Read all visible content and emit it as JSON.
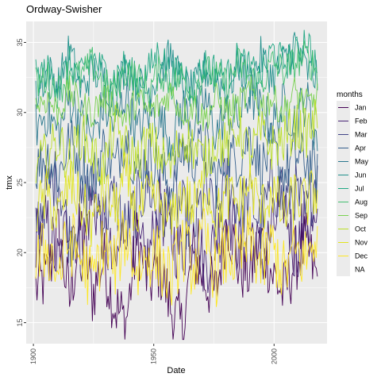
{
  "chart_data": {
    "type": "line",
    "title": "Ordway-Swisher",
    "xlabel": "Date",
    "ylabel": "tmx",
    "xlim": [
      1897,
      2022
    ],
    "ylim": [
      13.5,
      36.5
    ],
    "x_ticks": [
      1900,
      1950,
      2000
    ],
    "y_ticks": [
      15,
      20,
      25,
      30,
      35
    ],
    "x_tick_labels": [
      "1900",
      "1950",
      "2000"
    ],
    "y_tick_labels": [
      "15",
      "20",
      "25",
      "30",
      "35"
    ],
    "x_start": 1901,
    "x_end": 2018,
    "grid": true,
    "legend": {
      "title": "months",
      "position": "right",
      "entries": [
        "Jan",
        "Feb",
        "Mar",
        "Apr",
        "May",
        "Jun",
        "Jul",
        "Aug",
        "Sep",
        "Oct",
        "Nov",
        "Dec",
        "NA"
      ]
    },
    "series": [
      {
        "name": "Jan",
        "color": "#440154",
        "mean": 19.5,
        "amp": 2.5,
        "values": [
          17.5,
          18.2,
          21.5,
          16.5,
          22.0,
          17.0,
          19.5,
          16.2,
          15.0,
          21.0,
          17.8,
          19.0,
          16.0,
          14.5,
          20.0,
          18.0,
          17.0,
          22.5,
          19.0,
          18.5,
          21.0,
          18.5,
          17.0,
          19.5,
          20.5,
          18.0
        ]
      },
      {
        "name": "Feb",
        "color": "#482576",
        "mean": 20.8,
        "amp": 2.5,
        "values": [
          21.0,
          22.0,
          19.0,
          23.0,
          20.0,
          24.0,
          21.5,
          18.5,
          22.5,
          20.0,
          19.5,
          23.5,
          21.0,
          20.0,
          22.0,
          19.0,
          21.0,
          23.0,
          20.5,
          22.0,
          19.5,
          21.5,
          24.0,
          20.0,
          22.5,
          21.0
        ]
      },
      {
        "name": "Mar",
        "color": "#414487",
        "mean": 23.5,
        "amp": 2.3,
        "values": [
          22.0,
          24.5,
          25.5,
          21.0,
          23.0,
          25.0,
          22.5,
          24.0,
          21.5,
          23.5,
          25.0,
          22.0,
          24.0,
          23.0,
          21.5,
          24.5,
          22.5,
          25.5,
          23.0,
          24.0,
          22.0,
          25.0,
          23.5,
          24.5,
          22.5,
          26.0
        ]
      },
      {
        "name": "Apr",
        "color": "#35608D",
        "mean": 26.5,
        "amp": 2.0,
        "values": [
          26.0,
          27.0,
          25.5,
          28.0,
          26.5,
          25.0,
          27.5,
          26.0,
          28.5,
          25.5,
          27.0,
          26.0,
          24.5,
          27.5,
          26.5,
          28.0,
          25.0,
          27.0,
          26.5,
          28.5,
          26.0,
          27.5,
          25.5,
          27.0,
          26.5,
          25.8
        ]
      },
      {
        "name": "May",
        "color": "#2A788E",
        "mean": 29.5,
        "amp": 1.8,
        "values": [
          29.0,
          30.0,
          28.5,
          31.0,
          29.5,
          28.0,
          30.5,
          29.0,
          31.5,
          28.5,
          30.0,
          29.5,
          28.0,
          30.5,
          29.0,
          31.0,
          28.5,
          30.0,
          29.5,
          31.5,
          30.0,
          29.0,
          30.5,
          29.5,
          31.0,
          28.0
        ]
      },
      {
        "name": "Jun",
        "color": "#21908C",
        "mean": 32.0,
        "amp": 1.5,
        "values": [
          31.0,
          33.0,
          32.0,
          34.5,
          31.5,
          33.0,
          32.5,
          31.0,
          33.5,
          32.0,
          31.5,
          33.0,
          34.0,
          32.0,
          31.5,
          33.0,
          32.5,
          31.5,
          33.5,
          32.0,
          34.0,
          32.5,
          33.5,
          35.0,
          33.0,
          32.5
        ]
      },
      {
        "name": "Jul",
        "color": "#22A884",
        "mean": 32.5,
        "amp": 1.3,
        "values": [
          32.5,
          33.0,
          32.0,
          33.5,
          32.5,
          34.0,
          33.0,
          32.5,
          33.5,
          32.0,
          33.0,
          34.5,
          32.5,
          33.0,
          32.0,
          33.5,
          33.0,
          32.5,
          34.0,
          33.0,
          32.5,
          34.5,
          33.5,
          34.0,
          35.5,
          33.0
        ]
      },
      {
        "name": "Aug",
        "color": "#43BF71",
        "mean": 32.2,
        "amp": 1.3,
        "values": [
          32.0,
          32.5,
          31.5,
          33.0,
          32.5,
          33.5,
          32.0,
          31.5,
          33.0,
          32.5,
          31.5,
          33.0,
          32.0,
          32.5,
          31.5,
          33.0,
          32.5,
          32.0,
          33.5,
          32.5,
          32.0,
          33.5,
          33.0,
          33.5,
          34.0,
          33.0
        ]
      },
      {
        "name": "Sep",
        "color": "#7AD151",
        "mean": 30.5,
        "amp": 1.2,
        "values": [
          30.5,
          31.0,
          30.0,
          31.5,
          30.5,
          30.0,
          31.0,
          30.5,
          29.5,
          31.0,
          30.0,
          30.5,
          31.5,
          30.0,
          30.5,
          29.5,
          31.0,
          30.0,
          30.5,
          31.5,
          30.5,
          31.0,
          30.0,
          31.5,
          30.5,
          31.0
        ]
      },
      {
        "name": "Oct",
        "color": "#BBDF27",
        "mean": 27.5,
        "amp": 1.8,
        "values": [
          26.0,
          27.0,
          28.0,
          26.5,
          28.5,
          27.0,
          26.0,
          29.0,
          27.5,
          26.5,
          28.0,
          27.0,
          26.0,
          28.5,
          27.5,
          26.5,
          28.0,
          27.5,
          29.0,
          27.0,
          28.5,
          27.5,
          28.0,
          29.0,
          28.5,
          29.5
        ]
      },
      {
        "name": "Nov",
        "color": "#E1E41E",
        "mean": 23.5,
        "amp": 2.0,
        "values": [
          23.0,
          24.0,
          22.5,
          25.0,
          23.5,
          22.0,
          24.5,
          23.0,
          25.5,
          22.5,
          24.0,
          23.5,
          22.0,
          24.5,
          23.0,
          25.0,
          22.5,
          24.0,
          23.5,
          25.0,
          23.0,
          24.5,
          22.5,
          24.0,
          23.5,
          24.5
        ]
      },
      {
        "name": "Dec",
        "color": "#FDE725",
        "mean": 20.0,
        "amp": 2.5,
        "values": [
          19.0,
          20.5,
          18.5,
          21.0,
          19.5,
          18.0,
          20.5,
          19.0,
          21.5,
          18.5,
          20.0,
          19.5,
          18.0,
          20.5,
          19.0,
          21.0,
          18.5,
          20.0,
          19.5,
          21.0,
          19.0,
          20.5,
          18.5,
          20.0,
          19.5,
          21.5
        ]
      }
    ]
  }
}
